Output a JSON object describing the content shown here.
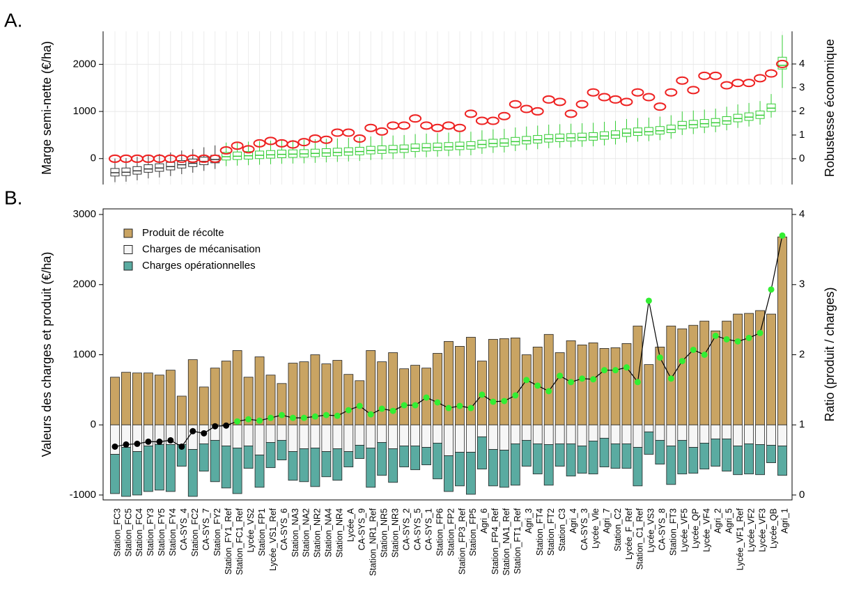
{
  "chart_data": [
    {
      "type": "box",
      "panel_label": "A.",
      "ylabel": "Marge semi-nette (€/ha)",
      "y2label": "Robustesse économique",
      "ylim": [
        -550,
        2700
      ],
      "yticks": [
        0,
        1000,
        2000
      ],
      "y2lim": [
        -1.09,
        5.38
      ],
      "y2ticks": [
        0,
        1,
        2,
        3,
        4
      ],
      "grid": true,
      "medians": [
        -300,
        -290,
        -260,
        -220,
        -200,
        -170,
        -130,
        -100,
        -60,
        -20,
        40,
        50,
        60,
        70,
        80,
        90,
        95,
        100,
        110,
        120,
        130,
        140,
        150,
        170,
        180,
        190,
        200,
        220,
        230,
        240,
        250,
        260,
        270,
        300,
        320,
        330,
        360,
        380,
        400,
        420,
        430,
        440,
        450,
        460,
        480,
        500,
        540,
        560,
        570,
        590,
        620,
        700,
        720,
        740,
        760,
        800,
        850,
        880,
        920,
        1070,
        1980
      ],
      "q1": [
        -370,
        -360,
        -330,
        -290,
        -270,
        -240,
        -200,
        -170,
        -130,
        -90,
        -30,
        -20,
        -10,
        0,
        10,
        20,
        25,
        30,
        40,
        50,
        60,
        70,
        80,
        100,
        110,
        120,
        130,
        150,
        160,
        170,
        180,
        190,
        200,
        230,
        250,
        260,
        290,
        310,
        330,
        350,
        360,
        370,
        380,
        390,
        410,
        430,
        470,
        490,
        500,
        520,
        550,
        630,
        650,
        670,
        690,
        730,
        780,
        810,
        850,
        1000,
        1900
      ],
      "q3": [
        -210,
        -200,
        -170,
        -130,
        -110,
        -80,
        -40,
        -10,
        30,
        70,
        130,
        140,
        150,
        160,
        170,
        180,
        185,
        190,
        200,
        210,
        220,
        230,
        240,
        260,
        270,
        280,
        290,
        310,
        320,
        330,
        340,
        350,
        360,
        390,
        410,
        420,
        450,
        470,
        490,
        510,
        520,
        530,
        540,
        550,
        570,
        590,
        630,
        650,
        660,
        680,
        710,
        790,
        810,
        830,
        850,
        890,
        940,
        970,
        1010,
        1160,
        2150
      ],
      "whisker_low": [
        -500,
        -490,
        -460,
        -420,
        -400,
        -370,
        -330,
        -300,
        -260,
        -220,
        -160,
        -150,
        -140,
        -130,
        -120,
        -110,
        -105,
        -100,
        -90,
        -80,
        -70,
        -60,
        -50,
        -30,
        -20,
        -10,
        0,
        20,
        30,
        40,
        50,
        60,
        70,
        100,
        120,
        130,
        160,
        180,
        200,
        220,
        230,
        240,
        250,
        260,
        280,
        300,
        340,
        360,
        370,
        390,
        420,
        500,
        520,
        540,
        560,
        600,
        650,
        680,
        720,
        870,
        1500
      ],
      "whisker_high": [
        0,
        10,
        40,
        80,
        100,
        130,
        170,
        200,
        240,
        280,
        340,
        350,
        360,
        370,
        380,
        390,
        395,
        400,
        410,
        420,
        430,
        440,
        450,
        470,
        480,
        490,
        500,
        520,
        530,
        540,
        550,
        560,
        570,
        600,
        620,
        630,
        660,
        680,
        700,
        720,
        730,
        740,
        750,
        760,
        780,
        800,
        840,
        860,
        870,
        890,
        920,
        1000,
        1020,
        1040,
        1060,
        1100,
        1150,
        1180,
        1220,
        1370,
        2620
      ],
      "colors": [
        "#333333",
        "#333333",
        "#333333",
        "#333333",
        "#333333",
        "#333333",
        "#333333",
        "#333333",
        "#333333",
        "#333333",
        "#33cc33",
        "#33cc33",
        "#33cc33",
        "#33cc33",
        "#33cc33",
        "#33cc33",
        "#33cc33",
        "#33cc33",
        "#33cc33",
        "#33cc33",
        "#33cc33",
        "#33cc33",
        "#33cc33",
        "#33cc33",
        "#33cc33",
        "#33cc33",
        "#33cc33",
        "#33cc33",
        "#33cc33",
        "#33cc33",
        "#33cc33",
        "#33cc33",
        "#33cc33",
        "#33cc33",
        "#33cc33",
        "#33cc33",
        "#33cc33",
        "#33cc33",
        "#33cc33",
        "#33cc33",
        "#33cc33",
        "#33cc33",
        "#33cc33",
        "#33cc33",
        "#33cc33",
        "#33cc33",
        "#33cc33",
        "#33cc33",
        "#33cc33",
        "#33cc33",
        "#33cc33",
        "#33cc33",
        "#33cc33",
        "#33cc33",
        "#33cc33",
        "#33cc33",
        "#33cc33",
        "#33cc33",
        "#33cc33",
        "#33cc33",
        "#33cc33"
      ],
      "robustness": {
        "axis": "y2",
        "color": "#ee2222",
        "values": [
          0,
          0,
          0,
          0,
          0,
          0,
          0,
          0,
          0,
          0,
          0.35,
          0.55,
          0.4,
          0.65,
          0.75,
          0.65,
          0.6,
          0.7,
          0.85,
          0.8,
          1.1,
          1.1,
          0.85,
          1.3,
          1.15,
          1.4,
          1.4,
          1.7,
          1.4,
          1.3,
          1.4,
          1.3,
          1.9,
          1.6,
          1.6,
          1.8,
          2.3,
          2.1,
          2.0,
          2.5,
          2.4,
          1.9,
          2.3,
          2.8,
          2.6,
          2.5,
          2.4,
          2.8,
          2.6,
          2.2,
          2.8,
          3.3,
          2.9,
          3.5,
          3.5,
          3.1,
          3.2,
          3.2,
          3.4,
          3.6,
          4.0
        ]
      }
    },
    {
      "type": "bar",
      "panel_label": "B.",
      "ylabel": "Valeurs des charges et produit (€/ha)",
      "y2label": "Ratio (produit / charges)",
      "ylim": [
        -1070,
        3080
      ],
      "yticks": [
        -1000,
        0,
        1000,
        2000,
        3000
      ],
      "y2lim": [
        -0.07,
        4.08
      ],
      "y2ticks": [
        0,
        1,
        2,
        3,
        4
      ],
      "categories": [
        "Station_FC3",
        "Station_FC5",
        "Station_FC4",
        "Station_FY3",
        "Station_FY5",
        "Station_FY4",
        "CA-SYS_4",
        "Station_FC2",
        "CA-SYS_7",
        "Station_FY2",
        "Station_FY1_Ref",
        "Station_FC1_Ref",
        "Lycée_VS2",
        "Station_FP1",
        "Lycée_VS1_Ref",
        "CA-SYS_6",
        "Station_NA3",
        "Station_NA2",
        "Station_NR2",
        "Station_NA4",
        "Station_NR4",
        "Lycée_A",
        "CA-SYS_9",
        "Station_NR1_Ref",
        "Station_NR5",
        "Station_NR3",
        "CA-SYS_2",
        "CA-SYS_5",
        "CA-SYS_1",
        "Station_FP6",
        "Station_FP2",
        "Station_FP3_Ref",
        "Station_FP5",
        "Agri_6",
        "Station_FP4_Ref",
        "Station_NA1_Ref",
        "Station_FT1_Ref",
        "Agri_3",
        "Station_FT4",
        "Station_FT2",
        "Station_C3",
        "Agri_4",
        "CA-SYS_3",
        "Lycée_Vle",
        "Agri_7",
        "Station_C2",
        "Lycée_F_Ref",
        "Station_C1_Ref",
        "Lycée_VS3",
        "CA-SYS_8",
        "Station_FT3",
        "Lycée_VF5",
        "Lycée_QP",
        "Lycée_VF4",
        "Agri_2",
        "Agri_5",
        "Lycée_VF1_Ref",
        "Lycée_VF2",
        "Lycée_VF3",
        "Lycée_QB",
        "Agri_1"
      ],
      "series": [
        {
          "name": "Produit de récolte",
          "color": "#c9a463",
          "values": [
            680,
            750,
            740,
            740,
            710,
            780,
            410,
            930,
            540,
            810,
            910,
            1060,
            680,
            970,
            710,
            590,
            880,
            900,
            1000,
            870,
            920,
            720,
            630,
            1060,
            900,
            1030,
            800,
            850,
            810,
            1020,
            1190,
            1120,
            1250,
            910,
            1220,
            1230,
            1240,
            1000,
            1110,
            1290,
            1030,
            1200,
            1140,
            1170,
            1090,
            1100,
            1160,
            1410,
            860,
            1110,
            1410,
            1370,
            1420,
            1480,
            1340,
            1480,
            1580,
            1590,
            1630,
            1580,
            2680
          ]
        },
        {
          "name": "Charges de mécanisation",
          "color": "#f6f6f6",
          "values": [
            -420,
            -320,
            -380,
            -300,
            -280,
            -280,
            -280,
            -350,
            -270,
            -220,
            -300,
            -330,
            -300,
            -430,
            -250,
            -220,
            -380,
            -340,
            -330,
            -380,
            -340,
            -380,
            -290,
            -330,
            -250,
            -340,
            -300,
            -300,
            -320,
            -260,
            -440,
            -390,
            -390,
            -170,
            -350,
            -360,
            -270,
            -220,
            -270,
            -280,
            -270,
            -270,
            -300,
            -230,
            -190,
            -270,
            -270,
            -320,
            -100,
            -220,
            -300,
            -220,
            -320,
            -260,
            -200,
            -200,
            -300,
            -270,
            -280,
            -290,
            -300
          ]
        },
        {
          "name": "Charges opérationnelles",
          "color": "#5aaba1",
          "values": [
            -560,
            -700,
            -620,
            -650,
            -650,
            -670,
            -310,
            -670,
            -390,
            -590,
            -600,
            -650,
            -320,
            -460,
            -360,
            -280,
            -410,
            -470,
            -550,
            -360,
            -450,
            -220,
            -190,
            -560,
            -470,
            -480,
            -300,
            -340,
            -250,
            -510,
            -510,
            -480,
            -600,
            -460,
            -520,
            -530,
            -590,
            -370,
            -430,
            -580,
            -320,
            -460,
            -390,
            -470,
            -410,
            -350,
            -350,
            -550,
            -320,
            -340,
            -550,
            -480,
            -370,
            -370,
            -390,
            -460,
            -410,
            -430,
            -430,
            -250,
            -420
          ]
        }
      ],
      "ratio": {
        "axis": "y2",
        "line_color": "#000000",
        "values": [
          0.69,
          0.72,
          0.73,
          0.76,
          0.76,
          0.78,
          0.69,
          0.91,
          0.88,
          0.98,
          0.99,
          1.05,
          1.08,
          1.06,
          1.1,
          1.14,
          1.1,
          1.1,
          1.12,
          1.14,
          1.13,
          1.21,
          1.27,
          1.15,
          1.23,
          1.2,
          1.28,
          1.28,
          1.39,
          1.32,
          1.24,
          1.27,
          1.24,
          1.43,
          1.33,
          1.34,
          1.42,
          1.64,
          1.56,
          1.48,
          1.7,
          1.61,
          1.66,
          1.65,
          1.78,
          1.78,
          1.82,
          1.61,
          2.77,
          1.96,
          1.66,
          1.91,
          2.07,
          2.0,
          2.27,
          2.22,
          2.19,
          2.24,
          2.31,
          2.93,
          3.7
        ],
        "colors": [
          "#000000",
          "#000000",
          "#000000",
          "#000000",
          "#000000",
          "#000000",
          "#000000",
          "#000000",
          "#000000",
          "#000000",
          "#000000",
          "#33ee33",
          "#33ee33",
          "#33ee33",
          "#33ee33",
          "#33ee33",
          "#33ee33",
          "#33ee33",
          "#33ee33",
          "#33ee33",
          "#33ee33",
          "#33ee33",
          "#33ee33",
          "#33ee33",
          "#33ee33",
          "#33ee33",
          "#33ee33",
          "#33ee33",
          "#33ee33",
          "#33ee33",
          "#33ee33",
          "#33ee33",
          "#33ee33",
          "#33ee33",
          "#33ee33",
          "#33ee33",
          "#33ee33",
          "#33ee33",
          "#33ee33",
          "#33ee33",
          "#33ee33",
          "#33ee33",
          "#33ee33",
          "#33ee33",
          "#33ee33",
          "#33ee33",
          "#33ee33",
          "#33ee33",
          "#33ee33",
          "#33ee33",
          "#33ee33",
          "#33ee33",
          "#33ee33",
          "#33ee33",
          "#33ee33",
          "#33ee33",
          "#33ee33",
          "#33ee33",
          "#33ee33",
          "#33ee33",
          "#33ee33"
        ]
      }
    }
  ]
}
